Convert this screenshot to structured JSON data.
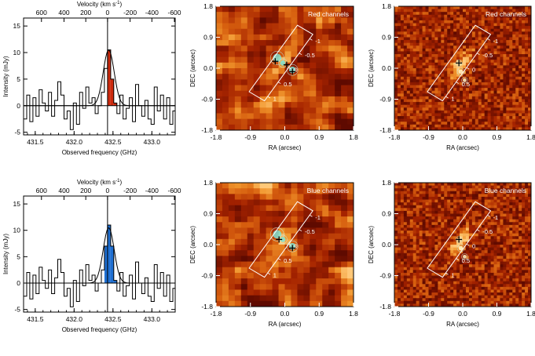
{
  "chart_data": [
    {
      "id": "spectrum-red",
      "type": "line",
      "style": "step",
      "title": "",
      "xlabel": "Observed frequency (GHz)",
      "ylabel": "Intensity (mJy)",
      "toplabel": "Velocity (km s",
      "toplabel_sup": "-1",
      "toplabel_tail": ")",
      "xlim": [
        431.35,
        433.3
      ],
      "ylim": [
        -5.5,
        16.5
      ],
      "xticks": [
        "431.5",
        "432.0",
        "432.5",
        "433.0"
      ],
      "xtick_values": [
        431.5,
        432.0,
        432.5,
        433.0
      ],
      "yticks": [
        "-5",
        "0",
        "5",
        "10",
        "15"
      ],
      "ytick_values": [
        -5,
        0,
        5,
        10,
        15
      ],
      "topticks": [
        "600",
        "400",
        "200",
        "0",
        "-200",
        "-400",
        "-600"
      ],
      "topticks_freq": [
        431.58,
        431.87,
        432.15,
        432.43,
        432.72,
        433.0,
        433.29
      ],
      "line_center": 432.43,
      "highlight": {
        "name": "Red channels",
        "color": "#cc2a0e",
        "range": [
          432.43,
          432.55
        ]
      },
      "x": [
        431.35,
        431.39,
        431.43,
        431.47,
        431.51,
        431.55,
        431.59,
        431.63,
        431.67,
        431.71,
        431.75,
        431.79,
        431.83,
        431.87,
        431.91,
        431.95,
        431.99,
        432.03,
        432.07,
        432.11,
        432.15,
        432.19,
        432.23,
        432.27,
        432.31,
        432.35,
        432.39,
        432.43,
        432.47,
        432.51,
        432.55,
        432.59,
        432.63,
        432.67,
        432.71,
        432.75,
        432.79,
        432.83,
        432.87,
        432.91,
        432.95,
        432.99,
        433.03,
        433.07,
        433.11,
        433.15,
        433.19,
        433.23,
        433.27
      ],
      "y": [
        -2.5,
        2.0,
        -3.0,
        1.5,
        -2.0,
        3.0,
        0.5,
        -1.0,
        2.5,
        -2.0,
        1.0,
        4.5,
        2.0,
        -2.5,
        -1.0,
        -4.5,
        0.5,
        -3.5,
        2.5,
        -0.5,
        3.5,
        0.5,
        1.5,
        -1.5,
        0.0,
        2.5,
        7.0,
        10.5,
        5.0,
        0.5,
        -1.5,
        2.0,
        -2.5,
        -0.5,
        1.5,
        -3.0,
        4.0,
        0.0,
        -2.0,
        1.0,
        -2.5,
        -3.5,
        3.5,
        -1.0,
        2.0,
        -2.5,
        1.5,
        -3.5,
        -1.0
      ]
    },
    {
      "id": "spectrum-blue",
      "type": "line",
      "style": "step",
      "title": "",
      "xlabel": "Observed frequency (GHz)",
      "ylabel": "Intensity (mJy)",
      "toplabel": "Velocity (km s",
      "toplabel_sup": "-1",
      "toplabel_tail": ")",
      "xlim": [
        431.35,
        433.3
      ],
      "ylim": [
        -5.5,
        16.5
      ],
      "xticks": [
        "431.5",
        "432.0",
        "432.5",
        "433.0"
      ],
      "xtick_values": [
        431.5,
        432.0,
        432.5,
        433.0
      ],
      "yticks": [
        "-5",
        "0",
        "5",
        "10",
        "15"
      ],
      "ytick_values": [
        -5,
        0,
        5,
        10,
        15
      ],
      "topticks": [
        "600",
        "400",
        "200",
        "0",
        "-200",
        "-400",
        "-600"
      ],
      "topticks_freq": [
        431.58,
        431.87,
        432.15,
        432.43,
        432.72,
        433.0,
        433.29
      ],
      "line_center": 432.43,
      "highlight": {
        "name": "Blue channels",
        "color": "#1f6fd1",
        "range": [
          432.39,
          432.55
        ]
      },
      "x": [
        431.35,
        431.39,
        431.43,
        431.47,
        431.51,
        431.55,
        431.59,
        431.63,
        431.67,
        431.71,
        431.75,
        431.79,
        431.83,
        431.87,
        431.91,
        431.95,
        431.99,
        432.03,
        432.07,
        432.11,
        432.15,
        432.19,
        432.23,
        432.27,
        432.31,
        432.35,
        432.39,
        432.43,
        432.47,
        432.51,
        432.55,
        432.59,
        432.63,
        432.67,
        432.71,
        432.75,
        432.79,
        432.83,
        432.87,
        432.91,
        432.95,
        432.99,
        433.03,
        433.07,
        433.11,
        433.15,
        433.19,
        433.23,
        433.27
      ],
      "y": [
        -2.5,
        2.0,
        -3.0,
        1.5,
        -2.0,
        3.0,
        0.5,
        -1.0,
        2.5,
        -2.0,
        1.0,
        4.5,
        2.0,
        -2.5,
        -1.0,
        -4.5,
        0.5,
        -3.5,
        2.5,
        -0.5,
        3.5,
        0.5,
        1.5,
        -1.5,
        0.0,
        2.5,
        7.0,
        11.0,
        7.0,
        0.5,
        -1.5,
        2.0,
        -2.5,
        -0.5,
        1.5,
        -3.0,
        4.0,
        0.0,
        -2.0,
        1.0,
        -2.5,
        -3.5,
        3.5,
        -1.0,
        2.0,
        -2.5,
        1.5,
        -3.5,
        -1.0
      ]
    },
    {
      "id": "map-red-lowres",
      "type": "heatmap",
      "annotation": "Red channels",
      "xlabel": "RA (arcsec)",
      "ylabel": "DEC (arcsec)",
      "xlim": [
        1.8,
        -1.8
      ],
      "ylim": [
        -1.8,
        1.8
      ],
      "xticks": [
        "-1.8",
        "-0.9",
        "0.0",
        "0.9",
        "1.8"
      ],
      "yticks": [
        "-1.8",
        "-0.9",
        "0.0",
        "0.9",
        "1.8"
      ],
      "slit_labels": [
        "-1",
        "-0.5",
        "0",
        "0.5",
        "1"
      ],
      "crosses": 3,
      "seed": 11,
      "blob_color": "#7fe3d4"
    },
    {
      "id": "map-red-highres",
      "type": "heatmap",
      "annotation": "Red channels",
      "xlabel": "RA (arcsec)",
      "ylabel": "DEC (arcsec)",
      "xlim": [
        1.8,
        -1.8
      ],
      "ylim": [
        -1.8,
        1.8
      ],
      "xticks": [
        "-1.8",
        "-0.9",
        "0.0",
        "0.9",
        "1.8"
      ],
      "yticks": [
        "-1.8",
        "-0.9",
        "0.0",
        "0.9",
        "1.8"
      ],
      "slit_labels": [
        "-1",
        "-0.5",
        "0",
        "0.5",
        "1"
      ],
      "crosses": 1,
      "seed": 23,
      "blob_color": "#fff6c8"
    },
    {
      "id": "map-blue-lowres",
      "type": "heatmap",
      "annotation": "Blue channels",
      "xlabel": "RA (arcsec)",
      "ylabel": "DEC (arcsec)",
      "xlim": [
        1.8,
        -1.8
      ],
      "ylim": [
        -1.8,
        1.8
      ],
      "xticks": [
        "-1.8",
        "-0.9",
        "0.0",
        "0.9",
        "1.8"
      ],
      "yticks": [
        "-1.8",
        "-0.9",
        "0.0",
        "0.9",
        "1.8"
      ],
      "slit_labels": [
        "-1",
        "-0.5",
        "0",
        "0.5",
        "1"
      ],
      "crosses": 2,
      "seed": 37,
      "blob_color": "#7fe3d4"
    },
    {
      "id": "map-blue-highres",
      "type": "heatmap",
      "annotation": "Blue channels",
      "xlabel": "RA (arcsec)",
      "ylabel": "DEC (arcsec)",
      "xlim": [
        1.8,
        -1.8
      ],
      "ylim": [
        -1.8,
        1.8
      ],
      "xticks": [
        "-1.8",
        "-0.9",
        "0.0",
        "0.9",
        "1.8"
      ],
      "yticks": [
        "-1.8",
        "-0.9",
        "0.0",
        "0.9",
        "1.8"
      ],
      "slit_labels": [
        "-1",
        "-0.5",
        "0",
        "0.5",
        "1"
      ],
      "crosses": 1,
      "seed": 51,
      "blob_color": "#fff6c8"
    }
  ]
}
